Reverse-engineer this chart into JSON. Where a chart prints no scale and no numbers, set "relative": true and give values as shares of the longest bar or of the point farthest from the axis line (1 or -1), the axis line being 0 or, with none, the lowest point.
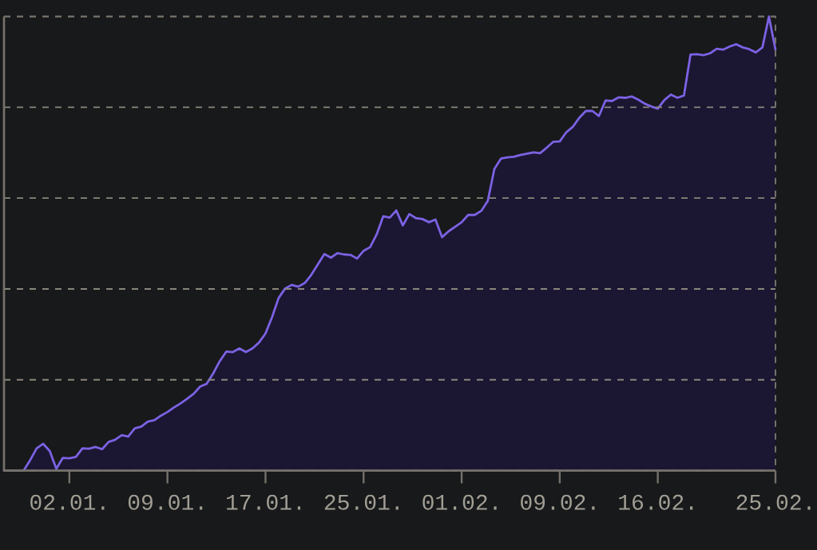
{
  "chart_data": {
    "type": "area",
    "relative": true,
    "grid": "y",
    "categories": [
      null,
      null,
      null,
      null,
      null,
      null,
      null,
      null,
      null,
      null,
      "02.01.",
      null,
      null,
      null,
      null,
      null,
      null,
      null,
      null,
      null,
      null,
      null,
      null,
      null,
      null,
      "09.01.",
      null,
      null,
      null,
      null,
      null,
      null,
      null,
      null,
      null,
      null,
      null,
      null,
      null,
      null,
      "17.01.",
      null,
      null,
      null,
      null,
      null,
      null,
      null,
      null,
      null,
      null,
      null,
      null,
      null,
      null,
      "25.01.",
      null,
      null,
      null,
      null,
      null,
      null,
      null,
      null,
      null,
      null,
      null,
      null,
      null,
      null,
      "01.02.",
      null,
      null,
      null,
      null,
      null,
      null,
      null,
      null,
      null,
      null,
      null,
      null,
      null,
      null,
      "09.02.",
      null,
      null,
      null,
      null,
      null,
      null,
      null,
      null,
      null,
      null,
      null,
      null,
      null,
      null,
      "16.02.",
      null,
      null,
      null,
      null,
      null,
      null,
      null,
      null,
      null,
      null,
      null,
      null,
      null,
      null,
      null,
      null,
      null,
      "25.02."
    ],
    "series": [
      {
        "color": "#7c62e3",
        "values": [
          0,
          0,
          0,
          0,
          0.023,
          0.049,
          0.059,
          0.043,
          0.004,
          0.028,
          0.027,
          0.03,
          0.049,
          0.048,
          0.052,
          0.047,
          0.063,
          0.068,
          0.078,
          0.075,
          0.093,
          0.097,
          0.108,
          0.111,
          0.121,
          0.129,
          0.139,
          0.148,
          0.158,
          0.169,
          0.185,
          0.191,
          0.214,
          0.241,
          0.262,
          0.261,
          0.269,
          0.261,
          0.269,
          0.282,
          0.302,
          0.338,
          0.38,
          0.401,
          0.409,
          0.405,
          0.413,
          0.431,
          0.454,
          0.477,
          0.469,
          0.479,
          0.476,
          0.475,
          0.467,
          0.484,
          0.492,
          0.52,
          0.56,
          0.557,
          0.573,
          0.54,
          0.565,
          0.556,
          0.554,
          0.547,
          0.553,
          0.514,
          0.527,
          0.537,
          0.547,
          0.563,
          0.563,
          0.572,
          0.594,
          0.664,
          0.687,
          0.69,
          0.691,
          0.695,
          0.698,
          0.701,
          0.699,
          0.711,
          0.724,
          0.725,
          0.745,
          0.757,
          0.777,
          0.792,
          0.792,
          0.781,
          0.815,
          0.814,
          0.822,
          0.821,
          0.824,
          0.817,
          0.808,
          0.802,
          0.797,
          0.816,
          0.828,
          0.821,
          0.826,
          0.916,
          0.917,
          0.915,
          0.919,
          0.929,
          0.927,
          0.934,
          0.939,
          0.932,
          0.928,
          0.921,
          0.932,
          1,
          0.927
        ]
      }
    ]
  }
}
